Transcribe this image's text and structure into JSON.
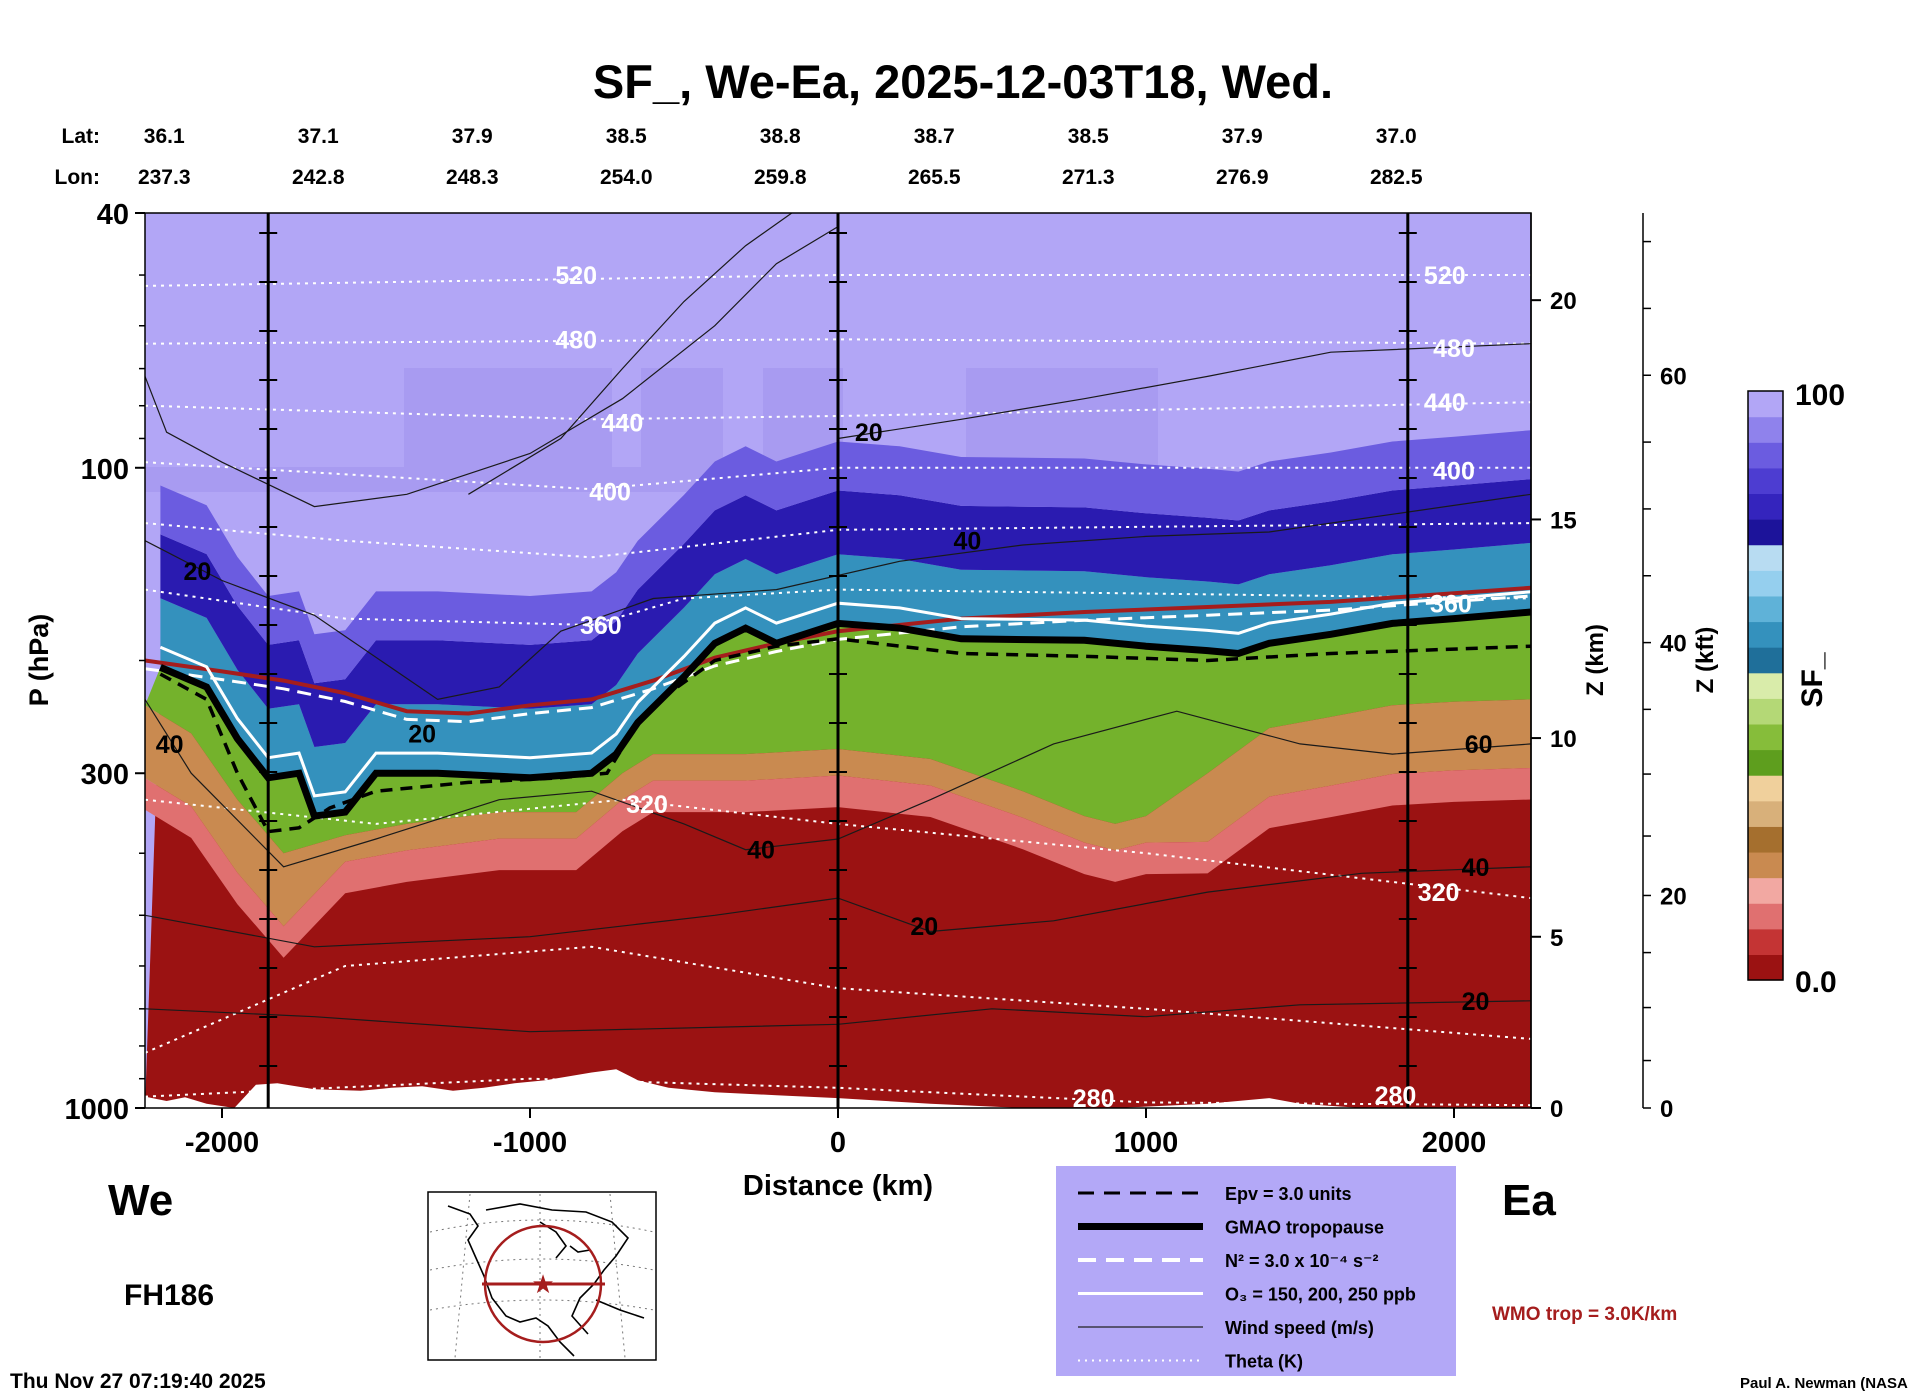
{
  "chart_data": {
    "type": "heatmap",
    "title": "SF_, We-Ea, 2025-12-03T18, Wed.",
    "colorbar": {
      "title": "SF_",
      "min_label": "0.0",
      "max_label": "100",
      "range": [
        0,
        100
      ]
    },
    "xlabel": "Distance (km)",
    "xlim": [
      -2250,
      2250
    ],
    "xticks": [
      {
        "v": -2000,
        "label": "-2000"
      },
      {
        "v": -1000,
        "label": "-1000"
      },
      {
        "v": 0,
        "label": "0"
      },
      {
        "v": 1000,
        "label": "1000"
      },
      {
        "v": 2000,
        "label": "2000"
      }
    ],
    "ylabel": "P (hPa)",
    "ylim": [
      1000,
      40
    ],
    "yscale": "log",
    "yticks": [
      {
        "v": 40,
        "label": "40"
      },
      {
        "v": 100,
        "label": "100"
      },
      {
        "v": 300,
        "label": "300"
      },
      {
        "v": 1000,
        "label": "1000"
      }
    ],
    "z_km_label": "Z (km)",
    "z_km_ticks": [
      {
        "v": 0,
        "label": "0"
      },
      {
        "v": 5,
        "label": "5"
      },
      {
        "v": 10,
        "label": "10"
      },
      {
        "v": 15,
        "label": "15"
      },
      {
        "v": 20,
        "label": "20"
      }
    ],
    "z_kft_label": "Z (kft)",
    "z_kft_ticks": [
      {
        "v": 0,
        "label": "0"
      },
      {
        "v": 20,
        "label": "20"
      },
      {
        "v": 40,
        "label": "40"
      },
      {
        "v": 60,
        "label": "60"
      }
    ],
    "lat_label": "Lat:",
    "lon_label": "Lon:",
    "track": [
      {
        "d": -2220,
        "lat": "36.1",
        "lon": "237.3"
      },
      {
        "d": -1720,
        "lat": "37.1",
        "lon": "242.8"
      },
      {
        "d": -1220,
        "lat": "37.9",
        "lon": "248.3"
      },
      {
        "d": -720,
        "lat": "38.5",
        "lon": "254.0"
      },
      {
        "d": -220,
        "lat": "38.8",
        "lon": "259.8"
      },
      {
        "d": 280,
        "lat": "38.7",
        "lon": "265.5"
      },
      {
        "d": 780,
        "lat": "38.5",
        "lon": "271.3"
      },
      {
        "d": 1280,
        "lat": "37.9",
        "lon": "276.9"
      },
      {
        "d": 1780,
        "lat": "37.0",
        "lon": "282.5"
      }
    ],
    "vertical_markers_km": [
      -1850,
      0,
      1850
    ],
    "tropopause_hPa": [
      [
        -2200,
        205
      ],
      [
        -2050,
        220
      ],
      [
        -1950,
        265
      ],
      [
        -1850,
        305
      ],
      [
        -1750,
        300
      ],
      [
        -1700,
        350
      ],
      [
        -1600,
        345
      ],
      [
        -1500,
        300
      ],
      [
        -1300,
        300
      ],
      [
        -1000,
        305
      ],
      [
        -800,
        300
      ],
      [
        -720,
        280
      ],
      [
        -650,
        250
      ],
      [
        -500,
        212
      ],
      [
        -400,
        188
      ],
      [
        -300,
        178
      ],
      [
        -200,
        188
      ],
      [
        0,
        175
      ],
      [
        200,
        178
      ],
      [
        400,
        185
      ],
      [
        800,
        186
      ],
      [
        1000,
        190
      ],
      [
        1200,
        193
      ],
      [
        1300,
        195
      ],
      [
        1400,
        188
      ],
      [
        1600,
        182
      ],
      [
        1800,
        175
      ],
      [
        2000,
        172
      ],
      [
        2250,
        168
      ]
    ],
    "wmo_tropopause_hPa": [
      [
        -2250,
        200
      ],
      [
        -2000,
        208
      ],
      [
        -1800,
        215
      ],
      [
        -1600,
        225
      ],
      [
        -1400,
        240
      ],
      [
        -1200,
        242
      ],
      [
        -1000,
        235
      ],
      [
        -800,
        230
      ],
      [
        -600,
        215
      ],
      [
        -400,
        198
      ],
      [
        -200,
        188
      ],
      [
        0,
        180
      ],
      [
        400,
        172
      ],
      [
        800,
        168
      ],
      [
        1200,
        165
      ],
      [
        1600,
        162
      ],
      [
        2000,
        157
      ],
      [
        2250,
        154
      ]
    ],
    "epv_contour_hPa": [
      [
        -2200,
        210
      ],
      [
        -2050,
        230
      ],
      [
        -1950,
        300
      ],
      [
        -1850,
        370
      ],
      [
        -1750,
        365
      ],
      [
        -1650,
        340
      ],
      [
        -1500,
        320
      ],
      [
        -1200,
        310
      ],
      [
        -900,
        305
      ],
      [
        -750,
        300
      ],
      [
        -650,
        250
      ],
      [
        -550,
        225
      ],
      [
        -400,
        200
      ],
      [
        -200,
        190
      ],
      [
        0,
        185
      ],
      [
        400,
        195
      ],
      [
        800,
        197
      ],
      [
        1200,
        200
      ],
      [
        1600,
        195
      ],
      [
        2000,
        192
      ],
      [
        2250,
        190
      ]
    ],
    "theta_labels": [
      {
        "d": -850,
        "p": 50,
        "label": "520"
      },
      {
        "d": 1970,
        "p": 50,
        "label": "520"
      },
      {
        "d": -850,
        "p": 63,
        "label": "480"
      },
      {
        "d": 2000,
        "p": 65,
        "label": "480"
      },
      {
        "d": -700,
        "p": 85,
        "label": "440"
      },
      {
        "d": 1970,
        "p": 79,
        "label": "440"
      },
      {
        "d": -740,
        "p": 109,
        "label": "400"
      },
      {
        "d": 2000,
        "p": 101,
        "label": "400"
      },
      {
        "d": -770,
        "p": 176,
        "label": "360"
      },
      {
        "d": 1990,
        "p": 163,
        "label": "360"
      },
      {
        "d": -620,
        "p": 335,
        "label": "320"
      },
      {
        "d": 1950,
        "p": 460,
        "label": "320"
      },
      {
        "d": 830,
        "p": 965,
        "label": "280"
      },
      {
        "d": 1810,
        "p": 955,
        "label": "280"
      }
    ],
    "wind_labels": [
      {
        "d": 100,
        "p": 88,
        "label": "20"
      },
      {
        "d": 420,
        "p": 130,
        "label": "40"
      },
      {
        "d": -2080,
        "p": 145,
        "label": "20"
      },
      {
        "d": -1350,
        "p": 260,
        "label": "20"
      },
      {
        "d": -2170,
        "p": 270,
        "label": "40"
      },
      {
        "d": 2080,
        "p": 270,
        "label": "60"
      },
      {
        "d": -250,
        "p": 395,
        "label": "40"
      },
      {
        "d": 2070,
        "p": 420,
        "label": "40"
      },
      {
        "d": 280,
        "p": 520,
        "label": "20"
      },
      {
        "d": 2070,
        "p": 680,
        "label": "20"
      }
    ],
    "legend": [
      {
        "style": "dash-black",
        "label": "Epv = 3.0 units"
      },
      {
        "style": "thick-black",
        "label": "GMAO tropopause"
      },
      {
        "style": "dash-white",
        "label": "N² = 3.0 x 10⁻⁴ s⁻²"
      },
      {
        "style": "solid-white",
        "label": "O₃ = 150, 200, 250 ppb"
      },
      {
        "style": "thin-black",
        "label": "Wind speed (m/s)"
      },
      {
        "style": "dot-white",
        "label": "Theta (K)"
      }
    ],
    "wmo_label": "WMO trop = 3.0K/km",
    "west_label": "We",
    "east_label": "Ea",
    "forecast_hour": "FH186",
    "timestamp": "Thu Nov 27 07:19:40 2025",
    "credit": "Paul A. Newman (NASA"
  },
  "colors": {
    "legend_bg": "#b3a8f7",
    "wmo_red": "#a51d1d",
    "stratosphere": "#b2a6f6",
    "troposphere": "#9b1212"
  },
  "colorbar_colors": [
    "#9b1212",
    "#c43434",
    "#e07070",
    "#f2a8a2",
    "#c98a50",
    "#a56f2e",
    "#d8b07a",
    "#f0d09c",
    "#5e9e1e",
    "#86bd3a",
    "#b4d876",
    "#d9ecaa",
    "#1f6f9a",
    "#3491bd",
    "#5fb2d8",
    "#95cfee",
    "#b8dcf2",
    "#1c139a",
    "#3424bd",
    "#4d3dd1",
    "#6b5ce0",
    "#8f82ec",
    "#b2a6f6"
  ]
}
